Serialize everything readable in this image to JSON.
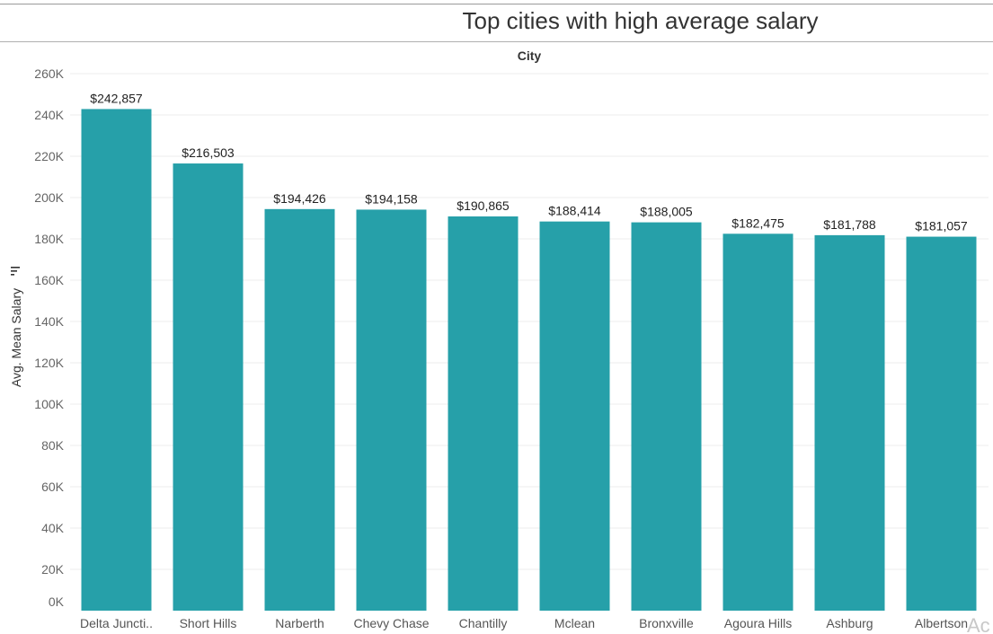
{
  "chart_data": {
    "type": "bar",
    "title": "Top cities with high average salary",
    "column_header": "City",
    "ylabel": "Avg. Mean Salary",
    "xlabel": "",
    "ylim": [
      0,
      260000
    ],
    "yticks": [
      0,
      20000,
      40000,
      60000,
      80000,
      100000,
      120000,
      140000,
      160000,
      180000,
      200000,
      220000,
      240000,
      260000
    ],
    "ytick_labels": [
      "0K",
      "20K",
      "40K",
      "60K",
      "80K",
      "100K",
      "120K",
      "140K",
      "160K",
      "180K",
      "200K",
      "220K",
      "240K",
      "260K"
    ],
    "grid": true,
    "categories": [
      "Delta Juncti..",
      "Short Hills",
      "Narberth",
      "Chevy Chase",
      "Chantilly",
      "Mclean",
      "Bronxville",
      "Agoura Hills",
      "Ashburg",
      "Albertson"
    ],
    "values": [
      242857,
      216503,
      194426,
      194158,
      190865,
      188414,
      188005,
      182475,
      181788,
      181057
    ],
    "data_labels": [
      "$242,857",
      "$216,503",
      "$194,426",
      "$194,158",
      "$190,865",
      "$188,414",
      "$188,005",
      "$182,475",
      "$181,788",
      "$181,057"
    ],
    "sorted": "descending",
    "bar_color": "#26a0a9"
  },
  "watermark": "Ac"
}
